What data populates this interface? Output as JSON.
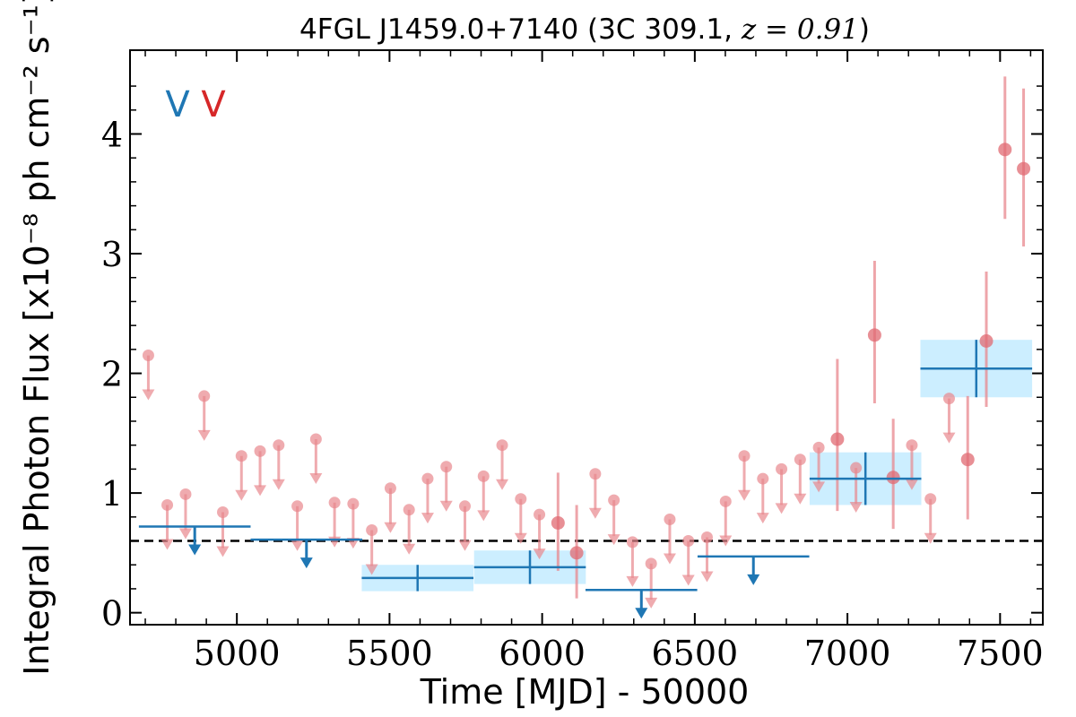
{
  "chart_data": {
    "type": "scatter",
    "title_prefix": "4FGL J1459.0+7140 (3C 309.1, ",
    "title_math": "z = 0.91",
    "title_suffix": ")",
    "xlabel": "Time [MJD] - 50000",
    "ylabel": "Integral Photon Flux [x10⁻⁸ ph cm⁻² s⁻¹]",
    "xlim": [
      4650,
      7640
    ],
    "ylim": [
      -0.1,
      4.7
    ],
    "xticks": [
      5000,
      5500,
      6000,
      6500,
      7000,
      7500
    ],
    "yticks": [
      0,
      1,
      2,
      3,
      4
    ],
    "legend_position": "top-left",
    "legend": [
      {
        "label": "V",
        "color": "#1f77b4"
      },
      {
        "label": "V",
        "color": "#d62728"
      }
    ],
    "reference_line": {
      "y": 0.6,
      "style": "dashed",
      "color": "#000000"
    },
    "series": [
      {
        "color": "#1f77b4",
        "shade_color": "#cceeff",
        "detections": [
          {
            "x": 5592,
            "xerr": 183,
            "y": 0.29,
            "yerr": 0.11
          },
          {
            "x": 5960,
            "xerr": 183,
            "y": 0.38,
            "yerr": 0.14
          },
          {
            "x": 7059,
            "xerr": 183,
            "y": 1.12,
            "yerr": 0.22
          },
          {
            "x": 7422,
            "xerr": 183,
            "y": 2.04,
            "yerr": 0.24
          }
        ],
        "upper_limits": [
          {
            "x": 4862,
            "xerr": 183,
            "y": 0.72
          },
          {
            "x": 5228,
            "xerr": 183,
            "y": 0.61
          },
          {
            "x": 6325,
            "xerr": 183,
            "y": 0.19
          },
          {
            "x": 6692,
            "xerr": 183,
            "y": 0.47
          }
        ]
      },
      {
        "color": "#e8878d",
        "upper_limits": [
          {
            "x": 4710,
            "y": 2.15
          },
          {
            "x": 4772,
            "y": 0.9
          },
          {
            "x": 4832,
            "y": 0.99
          },
          {
            "x": 4893,
            "y": 1.81
          },
          {
            "x": 4954,
            "y": 0.84
          },
          {
            "x": 5015,
            "y": 1.31
          },
          {
            "x": 5076,
            "y": 1.35
          },
          {
            "x": 5137,
            "y": 1.4
          },
          {
            "x": 5198,
            "y": 0.89
          },
          {
            "x": 5259,
            "y": 1.45
          },
          {
            "x": 5320,
            "y": 0.92
          },
          {
            "x": 5381,
            "y": 0.91
          },
          {
            "x": 5442,
            "y": 0.69
          },
          {
            "x": 5503,
            "y": 1.04
          },
          {
            "x": 5564,
            "y": 0.86
          },
          {
            "x": 5625,
            "y": 1.12
          },
          {
            "x": 5686,
            "y": 1.22
          },
          {
            "x": 5747,
            "y": 0.89
          },
          {
            "x": 5808,
            "y": 1.14
          },
          {
            "x": 5869,
            "y": 1.4
          },
          {
            "x": 5930,
            "y": 0.95
          },
          {
            "x": 5991,
            "y": 0.82
          },
          {
            "x": 6174,
            "y": 1.16
          },
          {
            "x": 6235,
            "y": 0.94
          },
          {
            "x": 6296,
            "y": 0.59
          },
          {
            "x": 6357,
            "y": 0.41
          },
          {
            "x": 6418,
            "y": 0.78
          },
          {
            "x": 6479,
            "y": 0.6
          },
          {
            "x": 6540,
            "y": 0.63
          },
          {
            "x": 6601,
            "y": 0.93
          },
          {
            "x": 6662,
            "y": 1.31
          },
          {
            "x": 6723,
            "y": 1.12
          },
          {
            "x": 6784,
            "y": 1.2
          },
          {
            "x": 6845,
            "y": 1.28
          },
          {
            "x": 6906,
            "y": 1.38
          },
          {
            "x": 7028,
            "y": 1.21
          },
          {
            "x": 7211,
            "y": 1.4
          },
          {
            "x": 7272,
            "y": 0.95
          },
          {
            "x": 7333,
            "y": 1.79
          }
        ],
        "detections": [
          {
            "x": 6052,
            "y": 0.75,
            "ylo": 0.35,
            "yhi": 1.17
          },
          {
            "x": 6113,
            "y": 0.5,
            "ylo": 0.12,
            "yhi": 0.9
          },
          {
            "x": 6967,
            "y": 1.45,
            "ylo": 0.85,
            "yhi": 2.12
          },
          {
            "x": 7089,
            "y": 2.32,
            "ylo": 1.75,
            "yhi": 2.94
          },
          {
            "x": 7150,
            "y": 1.13,
            "ylo": 0.7,
            "yhi": 1.62
          },
          {
            "x": 7394,
            "y": 1.28,
            "ylo": 0.78,
            "yhi": 1.81
          },
          {
            "x": 7455,
            "y": 2.27,
            "ylo": 1.72,
            "yhi": 2.85
          },
          {
            "x": 7516,
            "y": 3.87,
            "ylo": 3.29,
            "yhi": 4.48
          },
          {
            "x": 7577,
            "y": 3.71,
            "ylo": 3.06,
            "yhi": 4.38
          }
        ]
      }
    ]
  }
}
